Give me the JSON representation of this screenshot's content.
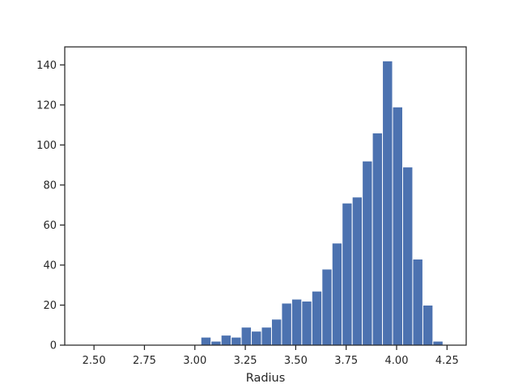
{
  "chart_data": {
    "type": "bar",
    "subtype": "histogram",
    "xlabel": "Radius",
    "ylabel": "",
    "title": "",
    "xlim": [
      2.355,
      4.345
    ],
    "ylim": [
      0,
      149
    ],
    "x_ticks": [
      2.5,
      2.75,
      3.0,
      3.25,
      3.5,
      3.75,
      4.0,
      4.25
    ],
    "x_tick_labels": [
      "2.50",
      "2.75",
      "3.00",
      "3.25",
      "3.50",
      "3.75",
      "4.00",
      "4.25"
    ],
    "y_ticks": [
      0,
      20,
      40,
      60,
      80,
      100,
      120,
      140
    ],
    "y_tick_labels": [
      "0",
      "20",
      "40",
      "60",
      "80",
      "100",
      "120",
      "140"
    ],
    "bar_color": "#4c72b0",
    "bar_edge_color": "#ffffff",
    "bins": [
      {
        "x0": 3.03,
        "x1": 3.08,
        "count": 4
      },
      {
        "x0": 3.08,
        "x1": 3.13,
        "count": 2
      },
      {
        "x0": 3.13,
        "x1": 3.18,
        "count": 5
      },
      {
        "x0": 3.18,
        "x1": 3.23,
        "count": 4
      },
      {
        "x0": 3.23,
        "x1": 3.28,
        "count": 9
      },
      {
        "x0": 3.28,
        "x1": 3.33,
        "count": 7
      },
      {
        "x0": 3.33,
        "x1": 3.38,
        "count": 9
      },
      {
        "x0": 3.38,
        "x1": 3.43,
        "count": 13
      },
      {
        "x0": 3.43,
        "x1": 3.48,
        "count": 21
      },
      {
        "x0": 3.48,
        "x1": 3.53,
        "count": 23
      },
      {
        "x0": 3.53,
        "x1": 3.58,
        "count": 22
      },
      {
        "x0": 3.58,
        "x1": 3.63,
        "count": 27
      },
      {
        "x0": 3.63,
        "x1": 3.68,
        "count": 38
      },
      {
        "x0": 3.68,
        "x1": 3.73,
        "count": 51
      },
      {
        "x0": 3.73,
        "x1": 3.78,
        "count": 71
      },
      {
        "x0": 3.78,
        "x1": 3.83,
        "count": 74
      },
      {
        "x0": 3.83,
        "x1": 3.88,
        "count": 92
      },
      {
        "x0": 3.88,
        "x1": 3.93,
        "count": 106
      },
      {
        "x0": 3.93,
        "x1": 3.98,
        "count": 142
      },
      {
        "x0": 3.98,
        "x1": 4.03,
        "count": 119
      },
      {
        "x0": 4.03,
        "x1": 4.08,
        "count": 89
      },
      {
        "x0": 4.08,
        "x1": 4.13,
        "count": 43
      },
      {
        "x0": 4.13,
        "x1": 4.18,
        "count": 20
      },
      {
        "x0": 4.18,
        "x1": 4.23,
        "count": 2
      }
    ]
  }
}
